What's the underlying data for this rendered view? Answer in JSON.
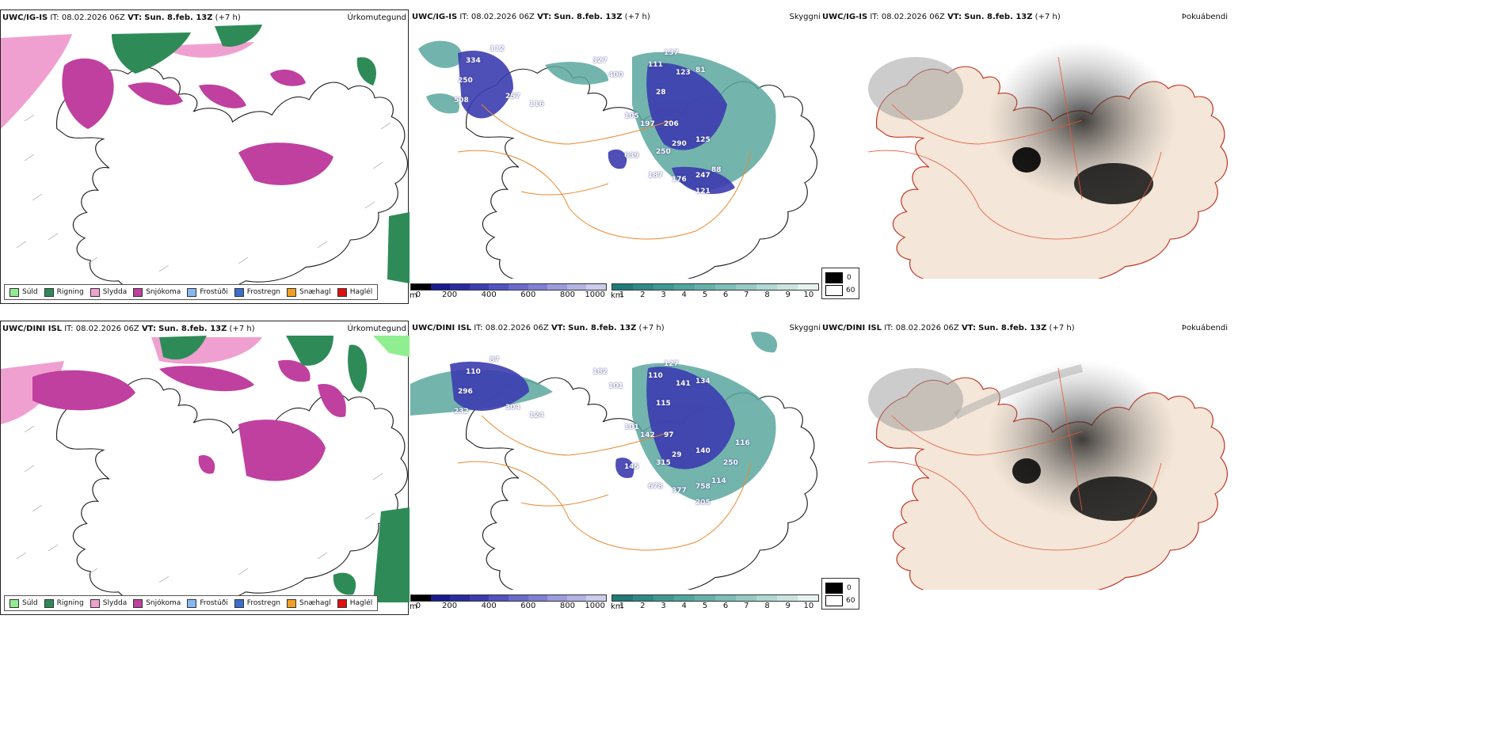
{
  "rows": [
    {
      "model": "UWC/IG-IS",
      "it_label": "IT:",
      "it_value": "08.02.2026 06Z",
      "vt_label": "VT:",
      "vt_value": "Sun. 8.feb. 13Z",
      "offset": "(+7 h)",
      "cloud_values": [
        "334",
        "112",
        "250",
        "508",
        "257",
        "116",
        "327",
        "400",
        "111",
        "137",
        "123",
        "81",
        "28",
        "105",
        "197",
        "206",
        "290",
        "125",
        "639",
        "250",
        "187",
        "176",
        "247",
        "88",
        "121"
      ]
    },
    {
      "model": "UWC/DINI ISL",
      "it_label": "IT:",
      "it_value": "08.02.2026 06Z",
      "vt_label": "VT:",
      "vt_value": "Sun. 8.feb. 13Z",
      "offset": "(+7 h)",
      "cloud_values": [
        "110",
        "87",
        "296",
        "232",
        "304",
        "124",
        "182",
        "101",
        "110",
        "127",
        "141",
        "134",
        "115",
        "101",
        "142",
        "97",
        "29",
        "140",
        "145",
        "315",
        "678",
        "377",
        "758",
        "114",
        "205",
        "250",
        "116"
      ]
    }
  ],
  "panel_titles": {
    "precip": "Úrkomutegund",
    "cloud": "Skyggni",
    "visibility": "Þokuábendi"
  },
  "precip_legend": [
    {
      "label": "Súld",
      "color": "#90ee90"
    },
    {
      "label": "Rigning",
      "color": "#2e8b57"
    },
    {
      "label": "Slydda",
      "color": "#f0a0d0"
    },
    {
      "label": "Snjókoma",
      "color": "#c040a0"
    },
    {
      "label": "Frostúði",
      "color": "#87b8f0"
    },
    {
      "label": "Frostregn",
      "color": "#3a6fd0"
    },
    {
      "label": "Snæhagl",
      "color": "#f0a020"
    },
    {
      "label": "Haglél",
      "color": "#e01010"
    }
  ],
  "cloud_base_scale": {
    "unit": "m",
    "ticks": [
      "0",
      "200",
      "400",
      "600",
      "800",
      "1000"
    ],
    "colors": [
      "#000000",
      "#1a1a90",
      "#2a2aa0",
      "#3c3cb0",
      "#5252c0",
      "#6a6acc",
      "#8080d4",
      "#9c9cdc",
      "#b4b4e4",
      "#ccccee"
    ]
  },
  "visibility_scale": {
    "unit": "km",
    "ticks": [
      "1",
      "2",
      "3",
      "4",
      "5",
      "6",
      "7",
      "8",
      "9",
      "10"
    ],
    "colors": [
      "#1f7a78",
      "#2e8a86",
      "#3e9892",
      "#50a69e",
      "#66b2aa",
      "#7ebeb6",
      "#98cac4",
      "#b2d8d2",
      "#cce4e0",
      "#e6f2f0"
    ]
  },
  "fog_legend": {
    "top": "0",
    "bottom": "60"
  },
  "colors": {
    "snow": "#c040a0",
    "rain": "#2e8b57",
    "sleet": "#f0a0d0",
    "land": "#f4e6d8",
    "road": "#e88a30",
    "fog": "#333333"
  }
}
